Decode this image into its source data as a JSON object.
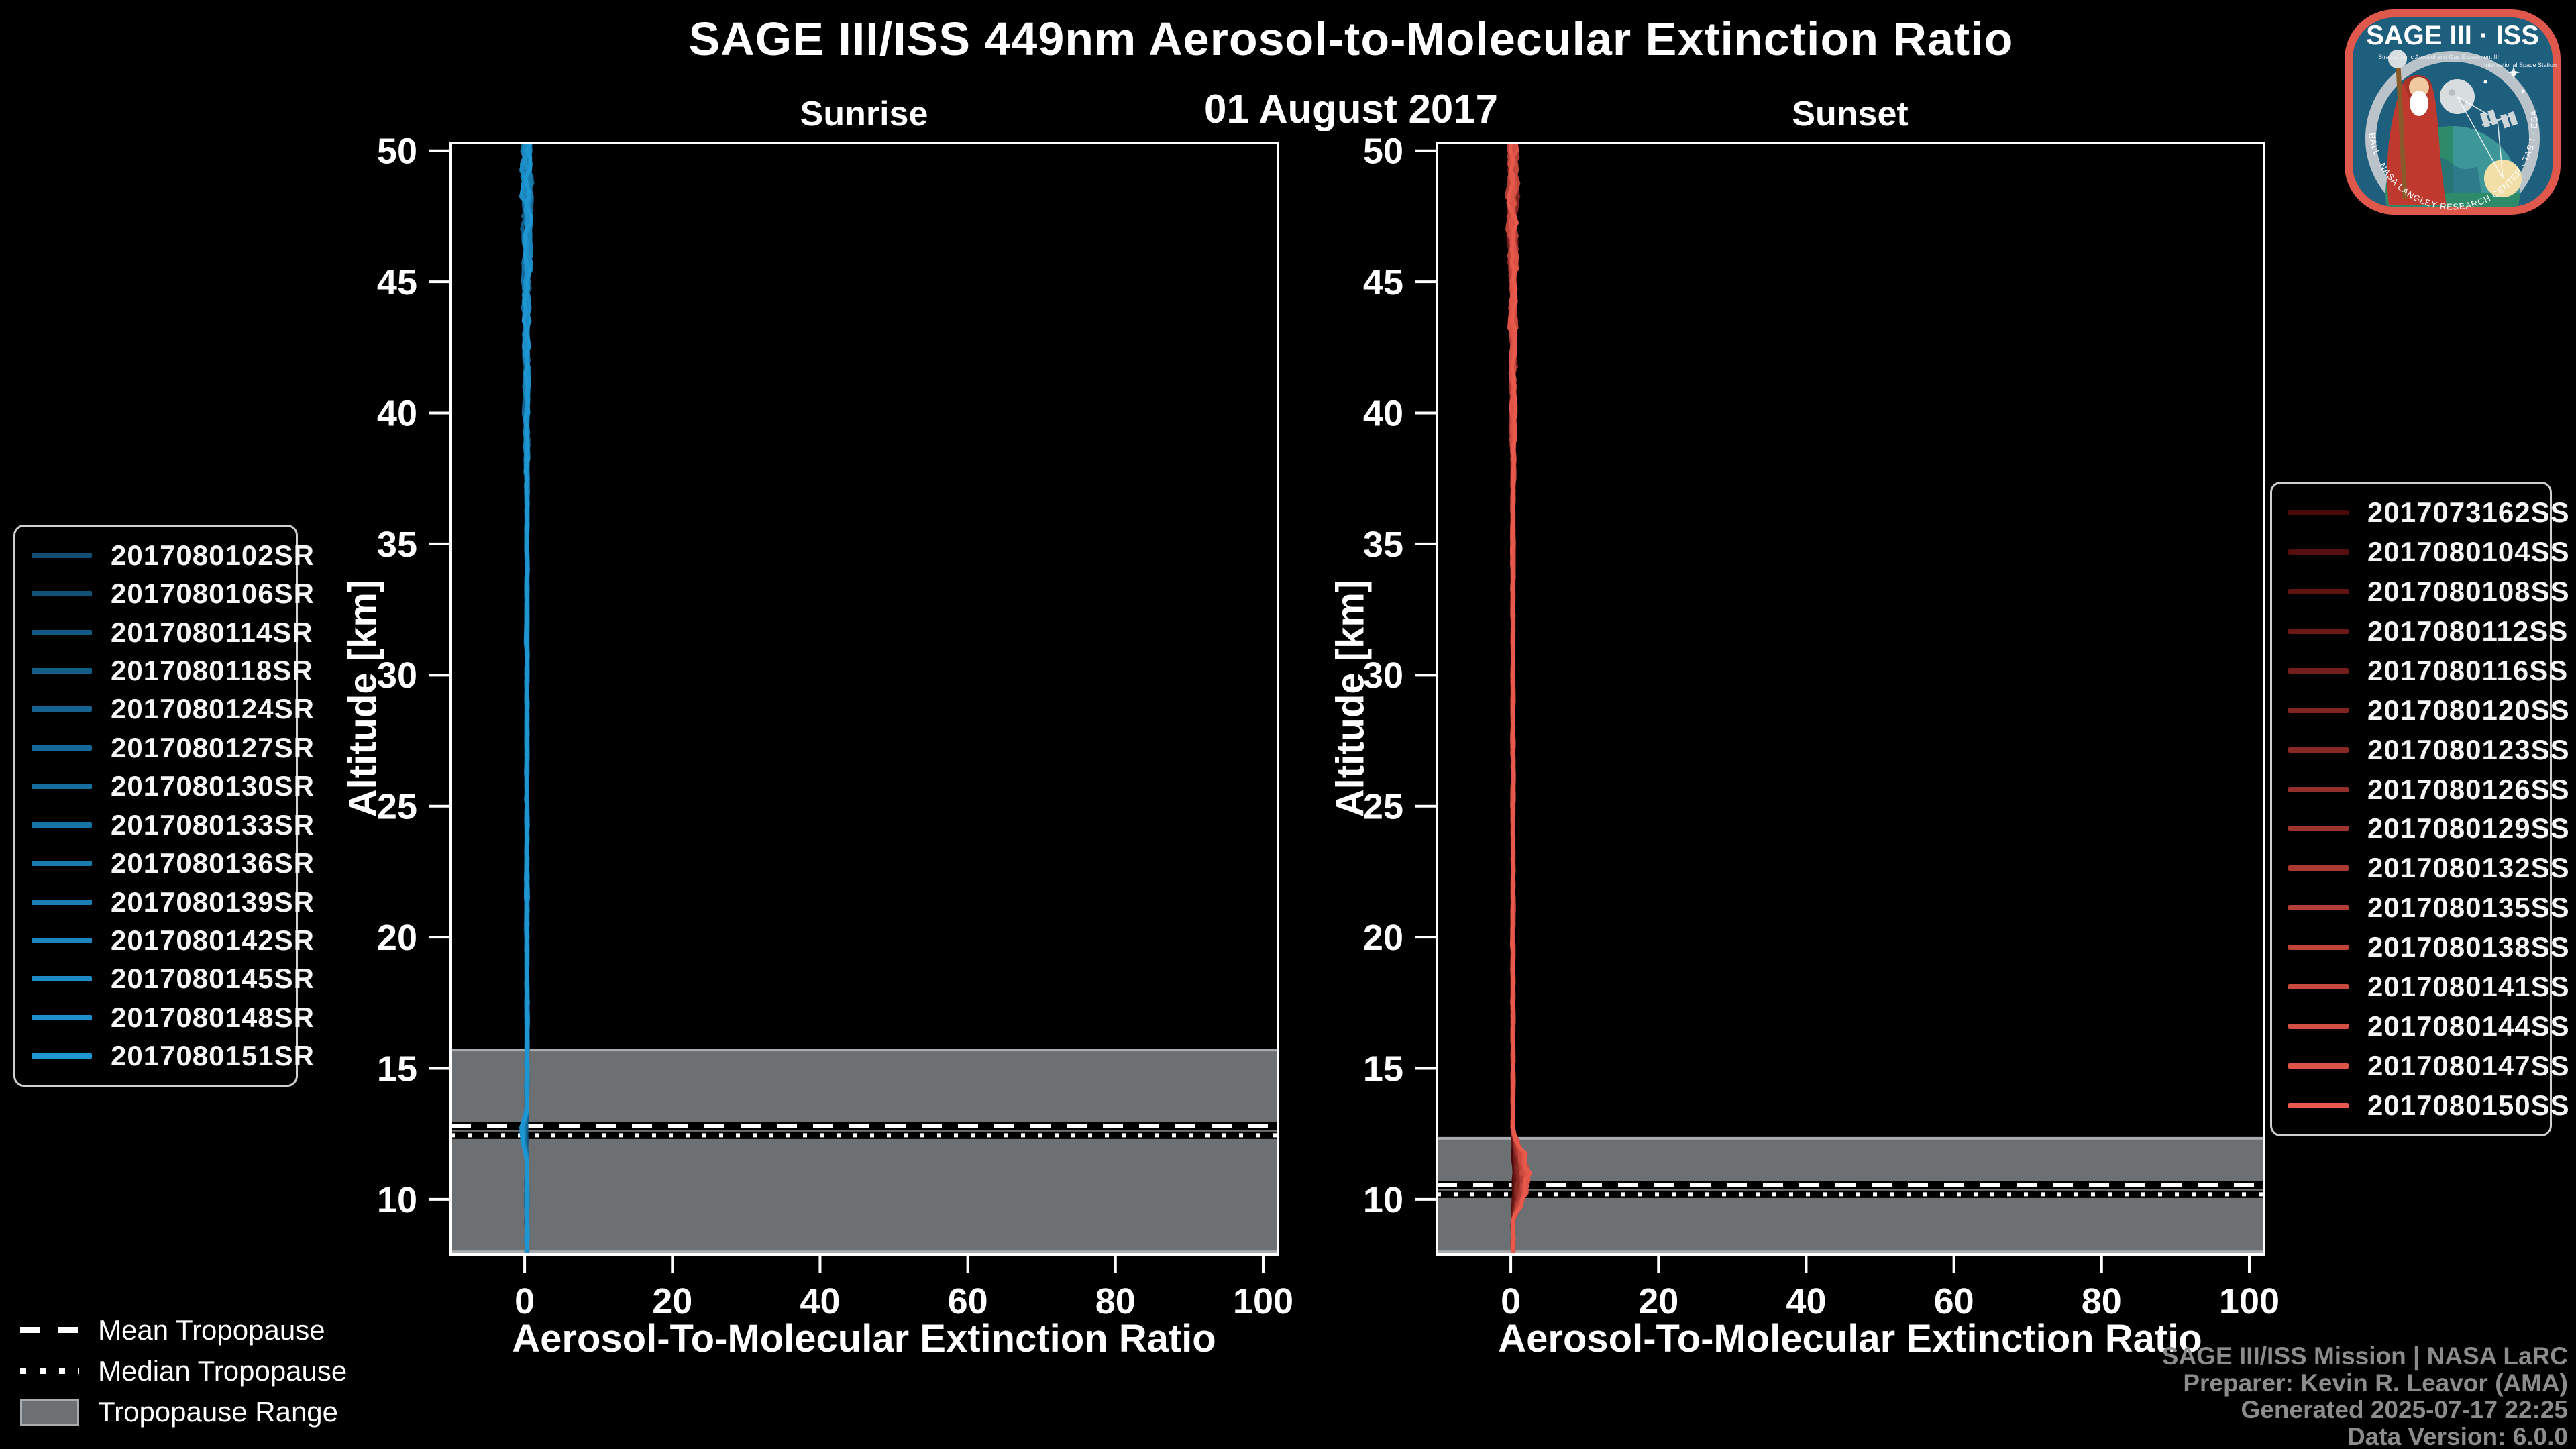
{
  "page": {
    "title": "SAGE III/ISS 449nm Aerosol-to-Molecular Extinction Ratio",
    "date": "01 August 2017",
    "attribution": [
      "SAGE III/ISS Mission | NASA LaRC",
      "Preparer: Kevin R. Leavor (AMA)",
      "Generated 2025-07-17 22:25",
      "Data Version: 6.0.0"
    ],
    "colors": {
      "background": "#000000",
      "text": "#ffffff",
      "muted_text": "#8c8c8c",
      "axis": "#ffffff",
      "tropopause_band": "#6d7073",
      "tropopause_band_edge": "#a9acae",
      "sunrise_dark": "#0f4d73",
      "sunrise_bright": "#1e96d2",
      "sunset_dark": "#4a0909",
      "sunset_bright": "#e8594c"
    }
  },
  "logo": {
    "title": "SAGE III · ISS",
    "subtitle_left": "Stratospheric Aerosol and Gas Experiment III",
    "subtitle_right": "International Space Station",
    "ring_text": "BALL · NASA LANGLEY RESEARCH CENTER · TAS-I · ESA"
  },
  "tropopause_legend": [
    {
      "label": "Mean Tropopause",
      "style": "dashed"
    },
    {
      "label": "Median Tropopause",
      "style": "dotted"
    },
    {
      "label": "Tropopause Range",
      "style": "box"
    }
  ],
  "chart_data": [
    {
      "type": "line",
      "panel": "Sunrise",
      "xlabel": "Aerosol-To-Molecular Extinction Ratio",
      "ylabel": "Altitude [km]",
      "xlim": [
        -10,
        102
      ],
      "ylim": [
        7.9,
        50.3
      ],
      "x_ticks": [
        0,
        20,
        40,
        60,
        80,
        100
      ],
      "y_ticks": [
        10,
        15,
        20,
        25,
        30,
        35,
        40,
        45,
        50
      ],
      "grid": false,
      "legend_position": "outside-left",
      "series": [
        {
          "label": "2017080102SR",
          "color": "#0f4d73"
        },
        {
          "label": "2017080106SR",
          "color": "#10537a"
        },
        {
          "label": "2017080114SR",
          "color": "#115882"
        },
        {
          "label": "2017080118SR",
          "color": "#125e89"
        },
        {
          "label": "2017080124SR",
          "color": "#146390"
        },
        {
          "label": "2017080127SR",
          "color": "#156998"
        },
        {
          "label": "2017080130SR",
          "color": "#166e9f"
        },
        {
          "label": "2017080133SR",
          "color": "#1774a6"
        },
        {
          "label": "2017080136SR",
          "color": "#187aad"
        },
        {
          "label": "2017080139SR",
          "color": "#197fb5"
        },
        {
          "label": "2017080142SR",
          "color": "#1a85bc"
        },
        {
          "label": "2017080145SR",
          "color": "#1c8ac3"
        },
        {
          "label": "2017080148SR",
          "color": "#1d90cb"
        },
        {
          "label": "2017080151SR",
          "color": "#1e96d2"
        }
      ],
      "profile": {
        "note": "All event profiles cluster tightly around ratio 0 over the full altitude range; noise amplitude grows above ~40 km",
        "altitude_km": [
          8,
          10,
          12,
          15,
          20,
          25,
          30,
          35,
          40,
          45,
          50
        ],
        "ratio": [
          0.2,
          0.1,
          -0.3,
          0.2,
          0.2,
          0.2,
          0.3,
          0.3,
          0.3,
          0.4,
          0.3
        ]
      },
      "bulge": {
        "alt_km": [
          11.6,
          13.4
        ],
        "max_ratio": -0.9
      },
      "tropopause": {
        "mean_km": 12.8,
        "median_km": 12.7,
        "range_km": [
          8.0,
          15.7
        ]
      }
    },
    {
      "type": "line",
      "panel": "Sunset",
      "xlabel": "Aerosol-To-Molecular Extinction Ratio",
      "ylabel": "Altitude [km]",
      "xlim": [
        -10,
        102
      ],
      "ylim": [
        7.9,
        50.3
      ],
      "x_ticks": [
        0,
        20,
        40,
        60,
        80,
        100
      ],
      "y_ticks": [
        10,
        15,
        20,
        25,
        30,
        35,
        40,
        45,
        50
      ],
      "grid": false,
      "legend_position": "outside-right",
      "series": [
        {
          "label": "2017073162SS",
          "color": "#4a0909"
        },
        {
          "label": "2017080104SS",
          "color": "#550e0d"
        },
        {
          "label": "2017080108SS",
          "color": "#5f1412"
        },
        {
          "label": "2017080112SS",
          "color": "#6a1916"
        },
        {
          "label": "2017080116SS",
          "color": "#741e1b"
        },
        {
          "label": "2017080120SS",
          "color": "#7f241f"
        },
        {
          "label": "2017080123SS",
          "color": "#892924"
        },
        {
          "label": "2017080126SS",
          "color": "#942e28"
        },
        {
          "label": "2017080129SS",
          "color": "#9e342d"
        },
        {
          "label": "2017080132SS",
          "color": "#a93931"
        },
        {
          "label": "2017080135SS",
          "color": "#b33e36"
        },
        {
          "label": "2017080138SS",
          "color": "#be443a"
        },
        {
          "label": "2017080141SS",
          "color": "#c8493e"
        },
        {
          "label": "2017080144SS",
          "color": "#d34e43"
        },
        {
          "label": "2017080147SS",
          "color": "#dd5447"
        },
        {
          "label": "2017080150SS",
          "color": "#e8594c"
        }
      ],
      "profile": {
        "note": "All event profiles cluster around ratio 0; excursions up to ~+2.5 between ~9 and ~12.5 km",
        "altitude_km": [
          8,
          10,
          11.5,
          12,
          15,
          20,
          25,
          30,
          35,
          40,
          45,
          50
        ],
        "ratio": [
          0.3,
          0.5,
          2.2,
          1.0,
          0.2,
          0.2,
          0.2,
          0.3,
          0.3,
          0.3,
          0.4,
          0.3
        ]
      },
      "bulge": {
        "alt_km": [
          9.2,
          12.6
        ],
        "max_ratio": 2.6
      },
      "tropopause": {
        "mean_km": 10.55,
        "median_km": 10.45,
        "range_km": [
          8.0,
          12.33
        ]
      }
    }
  ]
}
